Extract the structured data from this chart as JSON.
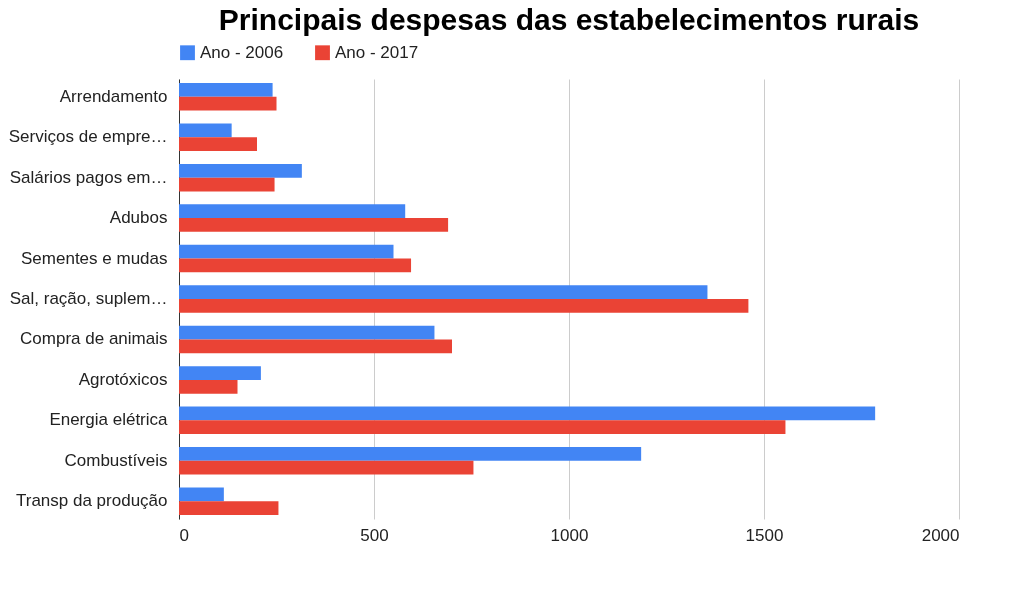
{
  "chart_data": {
    "type": "bar",
    "orientation": "horizontal",
    "title": "Principais despesas das estabelecimentos rurais",
    "categories": [
      "Arrendamento",
      "Serviços de empre…",
      "Salários pagos em…",
      "Adubos",
      "Sementes e mudas",
      "Sal, ração, suplem…",
      "Compra de animais",
      "Agrotóxicos",
      "Energia elétrica",
      "Combustíveis",
      "Transp da produção"
    ],
    "series": [
      {
        "name": "Ano - 2006",
        "color": "#4285f4",
        "values": [
          240,
          135,
          315,
          580,
          550,
          1355,
          655,
          210,
          1785,
          1185,
          115
        ]
      },
      {
        "name": "Ano - 2017",
        "color": "#ea4335",
        "values": [
          250,
          200,
          245,
          690,
          595,
          1460,
          700,
          150,
          1555,
          755,
          255
        ]
      }
    ],
    "xlim": [
      0,
      2000
    ],
    "xticks": [
      0,
      500,
      1000,
      1500,
      2000
    ],
    "grid": "x",
    "legend": "top"
  }
}
